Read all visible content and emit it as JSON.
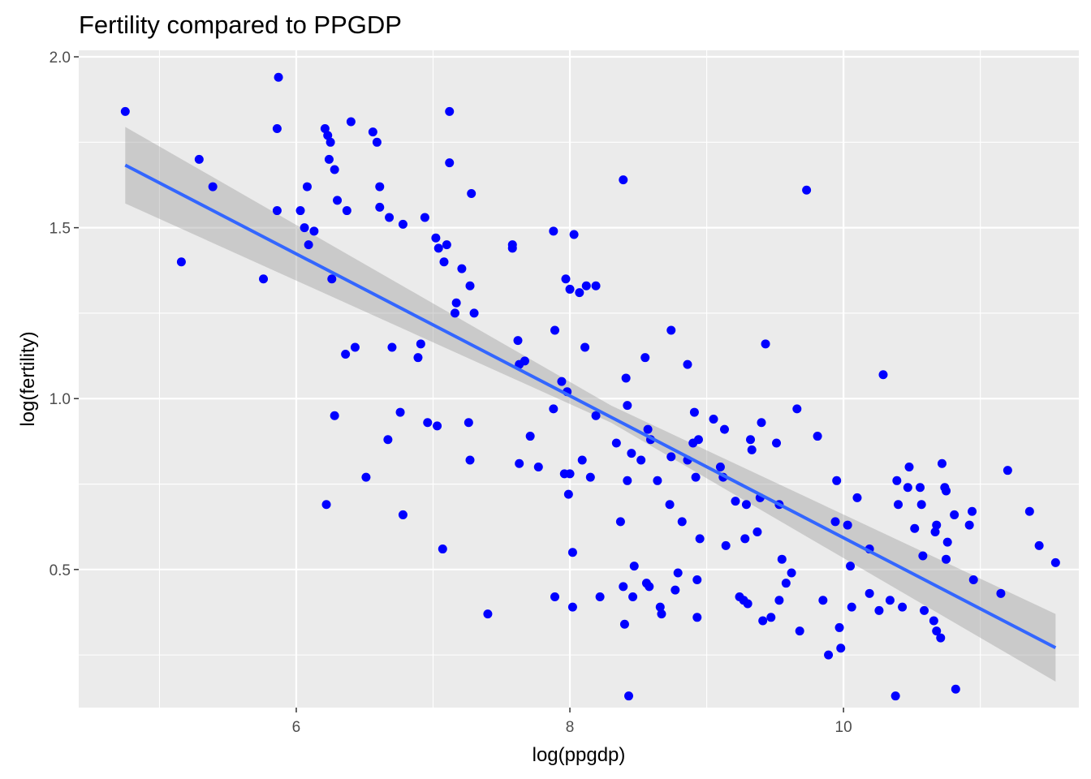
{
  "chart_data": {
    "type": "scatter",
    "title": "Fertility compared to PPGDP",
    "xlabel": "log(ppgdp)",
    "ylabel": "log(fertility)",
    "xlim": [
      4.41,
      11.72
    ],
    "ylim": [
      0.096,
      2.019
    ],
    "x_ticks": [
      6,
      8,
      10
    ],
    "x_minor_ticks": [
      5,
      7,
      9,
      11
    ],
    "y_ticks": [
      0.5,
      1.0,
      1.5,
      2.0
    ],
    "y_minor_ticks": [
      0.25,
      0.75,
      1.25,
      1.75
    ],
    "x_tick_labels": [
      "6",
      "8",
      "10"
    ],
    "y_tick_labels": [
      "0.5",
      "1.0",
      "1.5",
      "2.0"
    ],
    "grid": true,
    "legend": "none",
    "colors": {
      "panel_background": "#ebebeb",
      "grid": "#ffffff",
      "points": "#0000ff",
      "fit_line": "#3366ff",
      "confidence_band": "#999999"
    },
    "fit": {
      "method": "linear",
      "x_range": [
        4.75,
        11.55
      ],
      "line": [
        [
          4.75,
          1.683
        ],
        [
          11.55,
          0.271
        ]
      ],
      "ci_lower": [
        [
          4.75,
          1.571
        ],
        [
          8.3,
          0.93
        ],
        [
          11.55,
          0.172
        ]
      ],
      "ci_upper": [
        [
          4.75,
          1.795
        ],
        [
          8.3,
          0.98
        ],
        [
          11.55,
          0.37
        ]
      ]
    },
    "points": [
      [
        4.75,
        1.84
      ],
      [
        5.16,
        1.4
      ],
      [
        5.29,
        1.7
      ],
      [
        5.39,
        1.62
      ],
      [
        5.76,
        1.35
      ],
      [
        5.86,
        1.55
      ],
      [
        5.86,
        1.79
      ],
      [
        5.87,
        1.94
      ],
      [
        6.03,
        1.55
      ],
      [
        6.06,
        1.5
      ],
      [
        6.08,
        1.62
      ],
      [
        6.09,
        1.45
      ],
      [
        6.13,
        1.49
      ],
      [
        6.21,
        1.79
      ],
      [
        6.22,
        0.69
      ],
      [
        6.23,
        1.77
      ],
      [
        6.24,
        1.7
      ],
      [
        6.25,
        1.75
      ],
      [
        6.26,
        1.35
      ],
      [
        6.28,
        1.67
      ],
      [
        6.28,
        0.95
      ],
      [
        6.3,
        1.58
      ],
      [
        6.36,
        1.13
      ],
      [
        6.37,
        1.55
      ],
      [
        6.4,
        1.81
      ],
      [
        6.43,
        1.15
      ],
      [
        6.51,
        0.77
      ],
      [
        6.56,
        1.78
      ],
      [
        6.59,
        1.75
      ],
      [
        6.61,
        1.62
      ],
      [
        6.61,
        1.56
      ],
      [
        6.67,
        0.88
      ],
      [
        6.68,
        1.53
      ],
      [
        6.7,
        1.15
      ],
      [
        6.76,
        0.96
      ],
      [
        6.78,
        1.51
      ],
      [
        6.78,
        0.66
      ],
      [
        6.89,
        1.12
      ],
      [
        6.91,
        1.16
      ],
      [
        6.94,
        1.53
      ],
      [
        6.96,
        0.93
      ],
      [
        7.02,
        1.47
      ],
      [
        7.03,
        0.92
      ],
      [
        7.04,
        1.44
      ],
      [
        7.07,
        0.56
      ],
      [
        7.08,
        1.4
      ],
      [
        7.1,
        1.45
      ],
      [
        7.12,
        1.84
      ],
      [
        7.12,
        1.69
      ],
      [
        7.16,
        1.25
      ],
      [
        7.17,
        1.28
      ],
      [
        7.21,
        1.38
      ],
      [
        7.26,
        0.93
      ],
      [
        7.27,
        0.82
      ],
      [
        7.27,
        1.33
      ],
      [
        7.28,
        1.6
      ],
      [
        7.3,
        1.25
      ],
      [
        7.4,
        0.37
      ],
      [
        7.58,
        1.45
      ],
      [
        7.58,
        1.44
      ],
      [
        7.62,
        1.17
      ],
      [
        7.63,
        1.1
      ],
      [
        7.63,
        0.81
      ],
      [
        7.67,
        1.11
      ],
      [
        7.71,
        0.89
      ],
      [
        7.77,
        0.8
      ],
      [
        7.88,
        0.97
      ],
      [
        7.88,
        1.49
      ],
      [
        7.89,
        1.2
      ],
      [
        7.89,
        0.42
      ],
      [
        7.94,
        1.05
      ],
      [
        7.96,
        0.78
      ],
      [
        7.97,
        1.35
      ],
      [
        7.98,
        1.02
      ],
      [
        7.99,
        0.72
      ],
      [
        8.0,
        0.78
      ],
      [
        8.0,
        1.32
      ],
      [
        8.02,
        0.55
      ],
      [
        8.02,
        0.39
      ],
      [
        8.03,
        1.48
      ],
      [
        8.07,
        1.31
      ],
      [
        8.09,
        0.82
      ],
      [
        8.11,
        1.15
      ],
      [
        8.12,
        1.33
      ],
      [
        8.15,
        0.77
      ],
      [
        8.19,
        0.95
      ],
      [
        8.19,
        1.33
      ],
      [
        8.22,
        0.42
      ],
      [
        8.34,
        0.87
      ],
      [
        8.37,
        0.64
      ],
      [
        8.39,
        1.64
      ],
      [
        8.39,
        0.45
      ],
      [
        8.4,
        0.34
      ],
      [
        8.41,
        1.06
      ],
      [
        8.42,
        0.98
      ],
      [
        8.42,
        0.76
      ],
      [
        8.43,
        0.13
      ],
      [
        8.45,
        0.84
      ],
      [
        8.46,
        0.42
      ],
      [
        8.47,
        0.51
      ],
      [
        8.52,
        0.82
      ],
      [
        8.55,
        1.12
      ],
      [
        8.56,
        0.46
      ],
      [
        8.57,
        0.91
      ],
      [
        8.58,
        0.45
      ],
      [
        8.59,
        0.88
      ],
      [
        8.64,
        0.76
      ],
      [
        8.66,
        0.39
      ],
      [
        8.67,
        0.37
      ],
      [
        8.73,
        0.69
      ],
      [
        8.74,
        1.2
      ],
      [
        8.74,
        0.83
      ],
      [
        8.77,
        0.44
      ],
      [
        8.79,
        0.49
      ],
      [
        8.82,
        0.64
      ],
      [
        8.86,
        0.82
      ],
      [
        8.86,
        1.1
      ],
      [
        8.9,
        0.87
      ],
      [
        8.91,
        0.96
      ],
      [
        8.92,
        0.77
      ],
      [
        8.93,
        0.47
      ],
      [
        8.93,
        0.36
      ],
      [
        8.94,
        0.88
      ],
      [
        8.95,
        0.59
      ],
      [
        9.05,
        0.94
      ],
      [
        9.1,
        0.8
      ],
      [
        9.12,
        0.77
      ],
      [
        9.13,
        0.91
      ],
      [
        9.14,
        0.57
      ],
      [
        9.21,
        0.7
      ],
      [
        9.24,
        0.42
      ],
      [
        9.27,
        0.41
      ],
      [
        9.28,
        0.59
      ],
      [
        9.29,
        0.69
      ],
      [
        9.3,
        0.4
      ],
      [
        9.32,
        0.88
      ],
      [
        9.33,
        0.85
      ],
      [
        9.37,
        0.61
      ],
      [
        9.39,
        0.71
      ],
      [
        9.4,
        0.93
      ],
      [
        9.41,
        0.35
      ],
      [
        9.43,
        1.16
      ],
      [
        9.47,
        0.36
      ],
      [
        9.51,
        0.87
      ],
      [
        9.53,
        0.69
      ],
      [
        9.53,
        0.41
      ],
      [
        9.55,
        0.53
      ],
      [
        9.58,
        0.46
      ],
      [
        9.62,
        0.49
      ],
      [
        9.66,
        0.97
      ],
      [
        9.68,
        0.32
      ],
      [
        9.73,
        1.61
      ],
      [
        9.81,
        0.89
      ],
      [
        9.85,
        0.41
      ],
      [
        9.89,
        0.25
      ],
      [
        9.94,
        0.64
      ],
      [
        9.95,
        0.76
      ],
      [
        9.97,
        0.33
      ],
      [
        9.98,
        0.27
      ],
      [
        10.03,
        0.63
      ],
      [
        10.05,
        0.51
      ],
      [
        10.06,
        0.39
      ],
      [
        10.1,
        0.71
      ],
      [
        10.19,
        0.56
      ],
      [
        10.19,
        0.43
      ],
      [
        10.26,
        0.38
      ],
      [
        10.29,
        1.07
      ],
      [
        10.34,
        0.41
      ],
      [
        10.38,
        0.13
      ],
      [
        10.39,
        0.76
      ],
      [
        10.4,
        0.69
      ],
      [
        10.43,
        0.39
      ],
      [
        10.47,
        0.74
      ],
      [
        10.48,
        0.8
      ],
      [
        10.52,
        0.62
      ],
      [
        10.56,
        0.74
      ],
      [
        10.57,
        0.69
      ],
      [
        10.58,
        0.54
      ],
      [
        10.59,
        0.38
      ],
      [
        10.66,
        0.35
      ],
      [
        10.67,
        0.61
      ],
      [
        10.68,
        0.32
      ],
      [
        10.68,
        0.63
      ],
      [
        10.71,
        0.3
      ],
      [
        10.72,
        0.81
      ],
      [
        10.74,
        0.74
      ],
      [
        10.75,
        0.73
      ],
      [
        10.75,
        0.53
      ],
      [
        10.76,
        0.58
      ],
      [
        10.81,
        0.66
      ],
      [
        10.82,
        0.15
      ],
      [
        10.92,
        0.63
      ],
      [
        10.94,
        0.67
      ],
      [
        10.95,
        0.47
      ],
      [
        11.15,
        0.43
      ],
      [
        11.2,
        0.79
      ],
      [
        11.36,
        0.67
      ],
      [
        11.43,
        0.57
      ],
      [
        11.55,
        0.52
      ]
    ]
  }
}
